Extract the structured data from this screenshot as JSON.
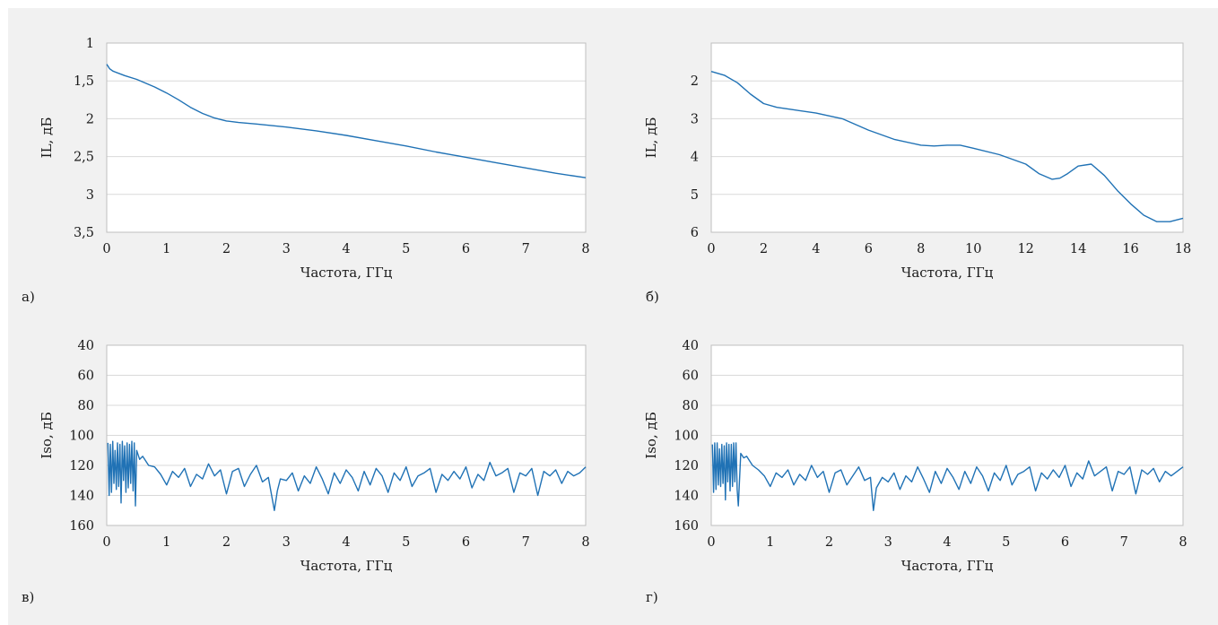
{
  "colors": {
    "background": "#f1f1f1",
    "plot_area": "#ffffff",
    "gridline": "#d9d9d9",
    "frame": "#bfbfbf",
    "series_line": "#2072b5",
    "text": "#1a1a1a"
  },
  "chart_data": [
    {
      "panel_label": "а)",
      "type": "line",
      "xlabel": "Частота, ГГц",
      "ylabel": "IL, дБ",
      "xlim": [
        0,
        8
      ],
      "ylim": [
        1,
        3.5
      ],
      "y_inverted": true,
      "grid": "horizontal",
      "x_ticks": [
        "0",
        "1",
        "2",
        "3",
        "4",
        "5",
        "6",
        "7",
        "8"
      ],
      "y_ticks": [
        "1",
        "1,5",
        "2",
        "2,5",
        "3",
        "3,5"
      ],
      "series": [
        {
          "x": [
            0,
            0.05,
            0.1,
            0.3,
            0.5,
            0.8,
            1.0,
            1.2,
            1.4,
            1.6,
            1.8,
            2.0,
            2.2,
            2.5,
            3.0,
            3.5,
            4.0,
            4.5,
            5.0,
            5.5,
            6.0,
            6.5,
            7.0,
            7.5,
            8.0
          ],
          "values": [
            1.28,
            1.34,
            1.37,
            1.43,
            1.48,
            1.58,
            1.66,
            1.75,
            1.85,
            1.93,
            1.99,
            2.03,
            2.05,
            2.07,
            2.11,
            2.16,
            2.22,
            2.29,
            2.36,
            2.44,
            2.51,
            2.58,
            2.65,
            2.72,
            2.78
          ]
        }
      ]
    },
    {
      "panel_label": "б)",
      "type": "line",
      "xlabel": "Частота, ГГц",
      "ylabel": "IL, дБ",
      "xlim": [
        0,
        18
      ],
      "ylim": [
        1,
        6
      ],
      "y_inverted": true,
      "grid": "horizontal",
      "x_ticks": [
        "0",
        "2",
        "4",
        "6",
        "8",
        "10",
        "12",
        "14",
        "16",
        "18"
      ],
      "y_ticks": [
        "2",
        "3",
        "4",
        "5",
        "6"
      ],
      "series": [
        {
          "x": [
            0,
            0.5,
            1.0,
            1.5,
            2.0,
            2.5,
            3.0,
            4.0,
            5.0,
            6.0,
            7.0,
            8.0,
            8.5,
            9.0,
            9.5,
            10.0,
            11.0,
            12.0,
            12.5,
            13.0,
            13.3,
            13.6,
            14.0,
            14.5,
            15.0,
            15.5,
            16.0,
            16.5,
            17.0,
            17.5,
            18.0
          ],
          "values": [
            1.75,
            1.85,
            2.05,
            2.35,
            2.6,
            2.7,
            2.75,
            2.85,
            3.0,
            3.3,
            3.55,
            3.7,
            3.72,
            3.7,
            3.7,
            3.78,
            3.95,
            4.2,
            4.45,
            4.6,
            4.57,
            4.45,
            4.25,
            4.2,
            4.5,
            4.9,
            5.25,
            5.55,
            5.72,
            5.72,
            5.63
          ]
        }
      ]
    },
    {
      "panel_label": "в)",
      "type": "line",
      "xlabel": "Частота, ГГц",
      "ylabel": "Iso, дБ",
      "xlim": [
        0,
        8
      ],
      "ylim": [
        40,
        160
      ],
      "y_inverted": true,
      "grid": "horizontal",
      "x_ticks": [
        "0",
        "1",
        "2",
        "3",
        "4",
        "5",
        "6",
        "7",
        "8"
      ],
      "y_ticks": [
        "40",
        "60",
        "80",
        "100",
        "120",
        "140",
        "160"
      ],
      "series": [
        {
          "x": [
            0.02,
            0.04,
            0.06,
            0.08,
            0.1,
            0.12,
            0.14,
            0.16,
            0.18,
            0.2,
            0.22,
            0.24,
            0.26,
            0.28,
            0.3,
            0.32,
            0.34,
            0.36,
            0.38,
            0.4,
            0.42,
            0.44,
            0.46,
            0.48,
            0.5,
            0.55,
            0.6,
            0.7,
            0.8,
            0.9,
            1.0,
            1.1,
            1.2,
            1.3,
            1.4,
            1.5,
            1.6,
            1.7,
            1.8,
            1.9,
            2.0,
            2.1,
            2.2,
            2.3,
            2.4,
            2.5,
            2.6,
            2.7,
            2.8,
            2.85,
            2.9,
            3.0,
            3.1,
            3.2,
            3.3,
            3.4,
            3.5,
            3.6,
            3.7,
            3.8,
            3.9,
            4.0,
            4.1,
            4.2,
            4.3,
            4.4,
            4.5,
            4.6,
            4.7,
            4.8,
            4.9,
            5.0,
            5.1,
            5.2,
            5.3,
            5.4,
            5.5,
            5.6,
            5.7,
            5.8,
            5.9,
            6.0,
            6.1,
            6.2,
            6.3,
            6.4,
            6.5,
            6.6,
            6.7,
            6.8,
            6.9,
            7.0,
            7.1,
            7.2,
            7.3,
            7.4,
            7.5,
            7.6,
            7.7,
            7.8,
            7.9,
            8.0
          ],
          "values": [
            105,
            140,
            106,
            138,
            104,
            132,
            110,
            136,
            105,
            134,
            106,
            145,
            104,
            130,
            107,
            138,
            105,
            135,
            106,
            132,
            104,
            137,
            105,
            147,
            110,
            116,
            114,
            120,
            121,
            126,
            133,
            124,
            128,
            122,
            134,
            126,
            129,
            119,
            127,
            123,
            139,
            124,
            122,
            134,
            126,
            120,
            131,
            128,
            150,
            137,
            129,
            130,
            125,
            137,
            127,
            132,
            121,
            129,
            139,
            125,
            132,
            123,
            128,
            137,
            124,
            133,
            122,
            127,
            138,
            125,
            130,
            121,
            134,
            127,
            125,
            122,
            138,
            126,
            130,
            124,
            129,
            121,
            135,
            126,
            130,
            118,
            127,
            125,
            122,
            138,
            125,
            127,
            122,
            140,
            124,
            127,
            123,
            132,
            124,
            127,
            125,
            121
          ]
        }
      ]
    },
    {
      "panel_label": "г)",
      "type": "line",
      "xlabel": "Частота, ГГц",
      "ylabel": "Iso, дБ",
      "xlim": [
        0,
        8
      ],
      "ylim": [
        40,
        160
      ],
      "y_inverted": true,
      "grid": "horizontal",
      "x_ticks": [
        "0",
        "1",
        "2",
        "3",
        "4",
        "5",
        "6",
        "7",
        "8"
      ],
      "y_ticks": [
        "40",
        "60",
        "80",
        "100",
        "120",
        "140",
        "160"
      ],
      "series": [
        {
          "x": [
            0.02,
            0.04,
            0.06,
            0.08,
            0.1,
            0.12,
            0.14,
            0.16,
            0.18,
            0.2,
            0.22,
            0.24,
            0.26,
            0.28,
            0.3,
            0.32,
            0.34,
            0.36,
            0.38,
            0.4,
            0.42,
            0.44,
            0.46,
            0.5,
            0.55,
            0.6,
            0.7,
            0.8,
            0.9,
            1.0,
            1.1,
            1.2,
            1.3,
            1.4,
            1.5,
            1.6,
            1.7,
            1.8,
            1.9,
            2.0,
            2.1,
            2.2,
            2.3,
            2.4,
            2.5,
            2.6,
            2.7,
            2.75,
            2.8,
            2.9,
            3.0,
            3.1,
            3.2,
            3.3,
            3.4,
            3.5,
            3.6,
            3.7,
            3.8,
            3.9,
            4.0,
            4.1,
            4.2,
            4.3,
            4.4,
            4.5,
            4.6,
            4.7,
            4.8,
            4.9,
            5.0,
            5.1,
            5.2,
            5.3,
            5.4,
            5.5,
            5.6,
            5.7,
            5.8,
            5.9,
            6.0,
            6.1,
            6.2,
            6.3,
            6.4,
            6.5,
            6.6,
            6.7,
            6.8,
            6.9,
            7.0,
            7.1,
            7.2,
            7.3,
            7.4,
            7.5,
            7.6,
            7.7,
            7.8,
            7.9,
            8.0
          ],
          "values": [
            106,
            138,
            105,
            136,
            105,
            133,
            109,
            134,
            106,
            132,
            107,
            143,
            105,
            131,
            106,
            137,
            106,
            134,
            105,
            131,
            105,
            136,
            147,
            112,
            115,
            114,
            120,
            123,
            127,
            134,
            125,
            128,
            123,
            133,
            126,
            130,
            120,
            128,
            124,
            138,
            125,
            123,
            133,
            127,
            121,
            130,
            128,
            150,
            135,
            128,
            131,
            125,
            136,
            127,
            131,
            121,
            129,
            138,
            124,
            132,
            122,
            128,
            136,
            124,
            132,
            121,
            127,
            137,
            125,
            130,
            120,
            133,
            126,
            124,
            121,
            137,
            125,
            129,
            123,
            128,
            120,
            134,
            125,
            129,
            117,
            127,
            124,
            121,
            137,
            124,
            126,
            121,
            139,
            123,
            126,
            122,
            131,
            124,
            127,
            124,
            121
          ]
        }
      ]
    }
  ]
}
